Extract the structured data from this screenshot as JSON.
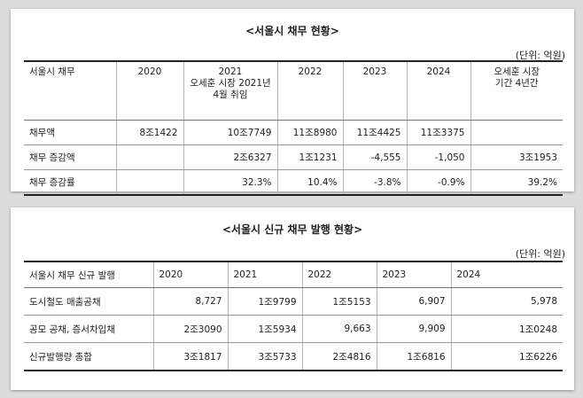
{
  "table1": {
    "title": "<서울시 채무 현황>",
    "unit": "(단위: 억원)",
    "headers": [
      "서울시 채무",
      "2020",
      "2021\n오세훈 시장 2021년\n4월 취임",
      "2022",
      "2023",
      "2024",
      "오세훈 시장\n기간 4년간"
    ],
    "rows": [
      [
        "채무액",
        "8조1422",
        "10조7749",
        "11조8980",
        "11조4425",
        "11조3375",
        ""
      ],
      [
        "채무 증감액",
        "",
        "2조6327",
        "1조1231",
        "-4,555",
        "-1,050",
        "3조1953"
      ],
      [
        "채무 증감률",
        "",
        "32.3%",
        "10.4%",
        "-3.8%",
        "-0.9%",
        "39.2%"
      ]
    ]
  },
  "table2": {
    "title": "<서울시 신규 채무 발행 현황>",
    "unit": "(단위: 억원)",
    "headers": [
      "서울시 채무 신규 발행",
      "2020",
      "2021",
      "2022",
      "2023",
      "2024"
    ],
    "rows": [
      [
        "도시철도 매출공채",
        "8,727",
        "1조9799",
        "1조5153",
        "6,907",
        "5,978"
      ],
      [
        "공모 공채, 증서차입채",
        "2조3090",
        "1조5934",
        "9,663",
        "9,909",
        "1조0248"
      ],
      [
        "신규발행량 총합",
        "3조1817",
        "3조5733",
        "2조4816",
        "1조6816",
        "1조6226"
      ]
    ]
  }
}
